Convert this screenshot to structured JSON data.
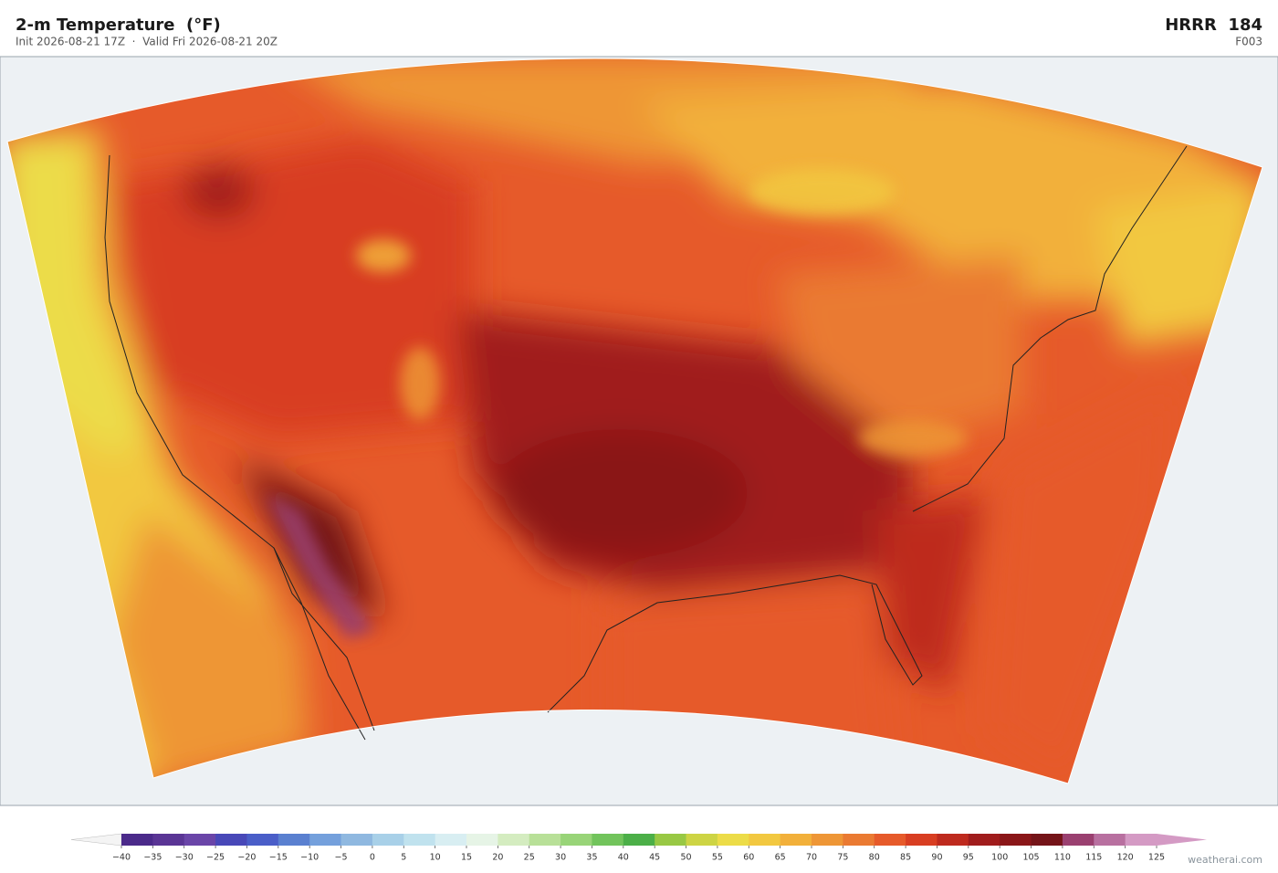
{
  "header": {
    "title": "2-m Temperature  (°F)",
    "subtitle": "Init 2026-08-21 17Z  ·  Valid Fri 2026-08-21 20Z",
    "model": "HRRR  184",
    "forecast_hour": "F003"
  },
  "colorbar": {
    "labels": [
      "−40",
      "−35",
      "−30",
      "−25",
      "−20",
      "−15",
      "−10",
      "−5",
      "0",
      "5",
      "10",
      "15",
      "20",
      "25",
      "30",
      "35",
      "40",
      "45",
      "50",
      "55",
      "60",
      "65",
      "70",
      "75",
      "80",
      "85",
      "90",
      "95",
      "100",
      "105",
      "110",
      "115",
      "120",
      "125"
    ],
    "colors": [
      "#4b2a8a",
      "#5a3595",
      "#6a45a8",
      "#4848b8",
      "#4a5ec8",
      "#5a80d0",
      "#74a0dc",
      "#8fb8e0",
      "#a8d0e8",
      "#c0e2ee",
      "#d8eef2",
      "#e6f4e6",
      "#d4ecc0",
      "#b8e098",
      "#98d478",
      "#72c45c",
      "#4caf48",
      "#98c844",
      "#cdd444",
      "#ecdc48",
      "#f2c840",
      "#f2b03a",
      "#ee9636",
      "#ea7a32",
      "#e65a2a",
      "#d83e22",
      "#be2a1e",
      "#a01c1c",
      "#8a1618",
      "#741418",
      "#9a4070",
      "#b870a0",
      "#d49ac4"
    ],
    "under_color": "#f4f4f4",
    "over_color": "#d49ac4"
  },
  "footer": {
    "credit": "weatherai.com"
  }
}
